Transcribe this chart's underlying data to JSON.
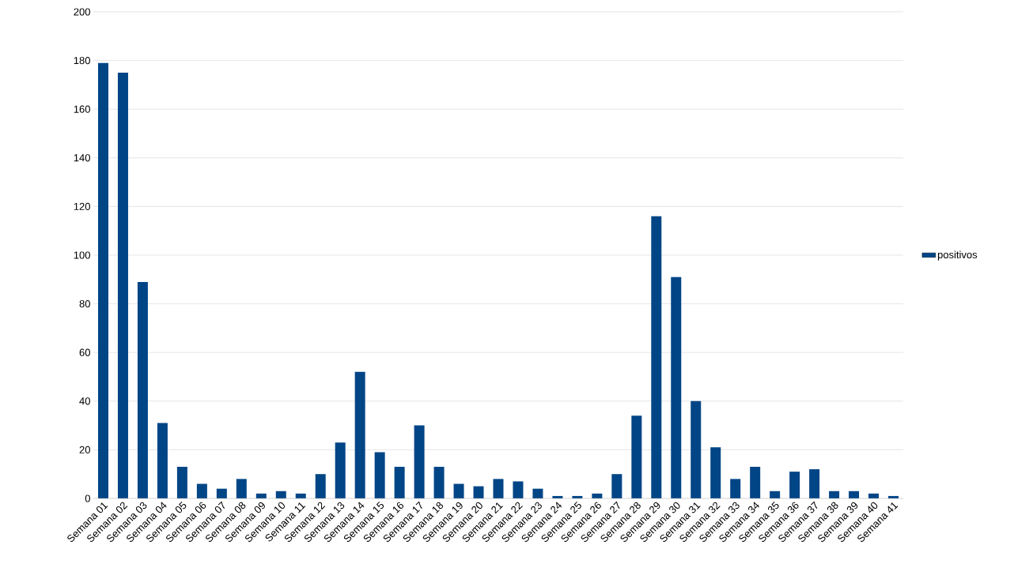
{
  "chart_data": {
    "type": "bar",
    "categories": [
      "Semana 01",
      "Semana 02",
      "Semana 03",
      "Semana 04",
      "Semana 05",
      "Semana 06",
      "Semana 07",
      "Semana 08",
      "Semana 09",
      "Semana 10",
      "Semana 11",
      "Semana 12",
      "Semana 13",
      "Semana 14",
      "Semana 15",
      "Semana 16",
      "Semana 17",
      "Semana 18",
      "Semana 19",
      "Semana 20",
      "Semana 21",
      "Semana 22",
      "Semana 23",
      "Semana 24",
      "Semana 25",
      "Semana 26",
      "Semana 27",
      "Semana 28",
      "Semana 29",
      "Semana 30",
      "Semana 31",
      "Semana 32",
      "Semana 33",
      "Semana 34",
      "Semana 35",
      "Semana 36",
      "Semana 37",
      "Semana 38",
      "Semana 39",
      "Semana 40",
      "Semana 41"
    ],
    "series": [
      {
        "name": "positivos",
        "color": "#004586",
        "values": [
          179,
          175,
          89,
          31,
          13,
          6,
          4,
          8,
          2,
          3,
          2,
          10,
          23,
          52,
          19,
          13,
          30,
          13,
          6,
          5,
          8,
          7,
          4,
          1,
          1,
          2,
          10,
          34,
          116,
          91,
          40,
          21,
          8,
          13,
          3,
          11,
          12,
          3,
          3,
          2,
          1
        ]
      }
    ],
    "ylim": [
      0,
      200
    ],
    "yticks": [
      0,
      20,
      40,
      60,
      80,
      100,
      120,
      140,
      160,
      180,
      200
    ],
    "grid": "y",
    "legend": "right"
  }
}
